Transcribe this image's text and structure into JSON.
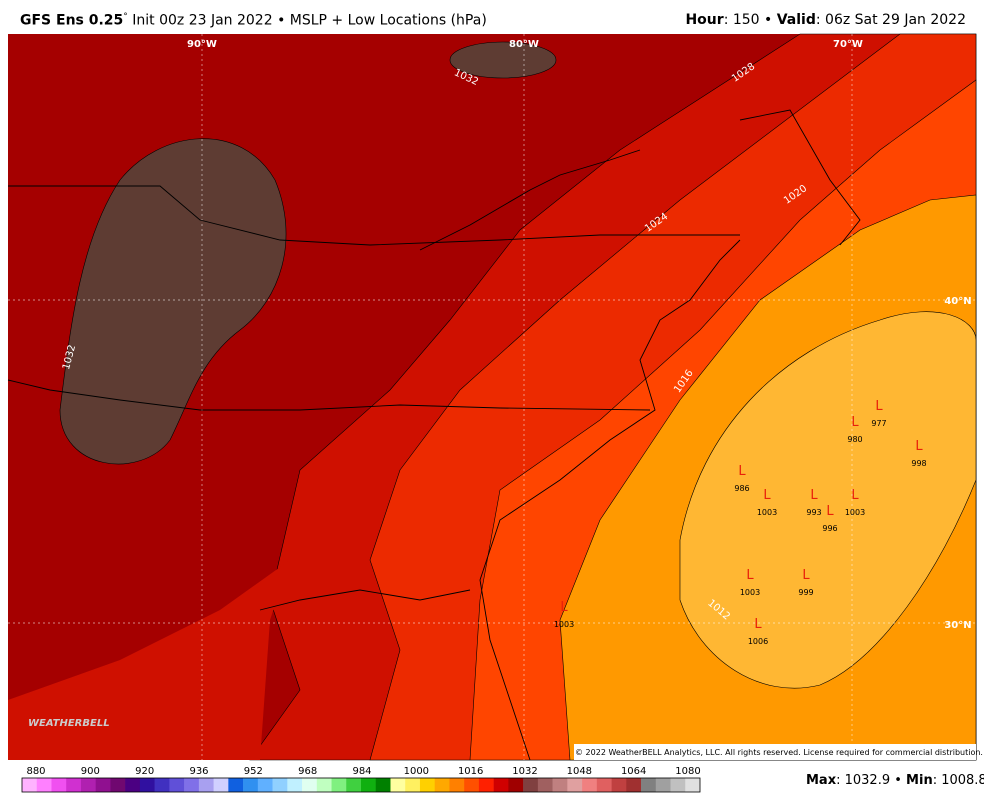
{
  "header": {
    "model": "GFS Ens 0.25",
    "degree": "°",
    "init": "Init 00z 23 Jan 2022 • MSLP + Low Locations (hPa)",
    "hour_label": "Hour",
    "hour_value": ": 150 • ",
    "valid_label": "Valid",
    "valid_value": ": 06z Sat 29 Jan 2022"
  },
  "contour_labels": [
    "1032",
    "1028",
    "1024",
    "1020",
    "1016",
    "1012",
    "1032"
  ],
  "grid_labels": [
    "90°W",
    "80°W",
    "70°W",
    "40°N",
    "30°N"
  ],
  "lows": [
    {
      "symbol": "L",
      "pressure": "977"
    },
    {
      "symbol": "L",
      "pressure": "980"
    },
    {
      "symbol": "L",
      "pressure": "998"
    },
    {
      "symbol": "L",
      "pressure": "986"
    },
    {
      "symbol": "L",
      "pressure": "1003"
    },
    {
      "symbol": "L",
      "pressure": "993"
    },
    {
      "symbol": "L",
      "pressure": "996"
    },
    {
      "symbol": "L",
      "pressure": "1003"
    },
    {
      "symbol": "L",
      "pressure": "1003"
    },
    {
      "symbol": "L",
      "pressure": "999"
    },
    {
      "symbol": "L",
      "pressure": "1006"
    },
    {
      "symbol": "L",
      "pressure": "1003"
    }
  ],
  "logo": "WEATHERBELL",
  "copyright": "© 2022 WeatherBELL Analytics, LLC. All rights reserved. License required for commercial distribution.",
  "colorbar_labels": [
    "880",
    "900",
    "920",
    "936",
    "952",
    "968",
    "984",
    "1000",
    "1016",
    "1032",
    "1048",
    "1064",
    "1080"
  ],
  "footer": {
    "max_label": "Max",
    "max_value": ": 1032.9 • ",
    "min_label": "Min",
    "min_value": ": 1008.8"
  }
}
